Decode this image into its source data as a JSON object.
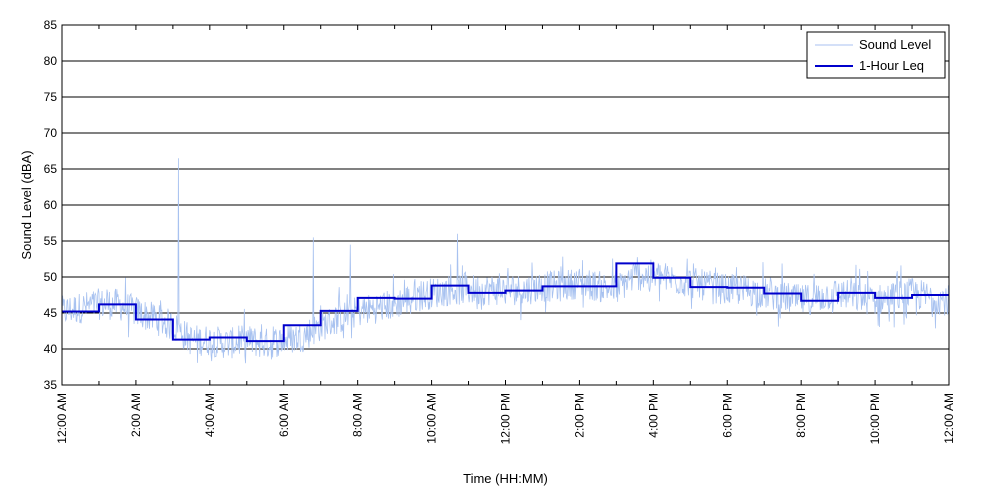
{
  "chart_data": {
    "type": "line",
    "title": "",
    "xlabel": "Time (HH:MM)",
    "ylabel": "Sound Level (dBA)",
    "ylim": [
      35,
      85
    ],
    "y_ticks": [
      "35",
      "40",
      "45",
      "50",
      "55",
      "60",
      "65",
      "70",
      "75",
      "80",
      "85"
    ],
    "xlim_hours": [
      0,
      24
    ],
    "x_tick_hours": [
      0,
      2,
      4,
      6,
      8,
      10,
      12,
      14,
      16,
      18,
      20,
      22,
      24
    ],
    "x_tick_labels": [
      "12:00 AM",
      "2:00 AM",
      "4:00 AM",
      "6:00 AM",
      "8:00 AM",
      "10:00 AM",
      "12:00 PM",
      "2:00 PM",
      "4:00 PM",
      "6:00 PM",
      "8:00 PM",
      "10:00 PM",
      "12:00 AM"
    ],
    "grid": "horizontal",
    "legend_position": "top-right",
    "colors": {
      "sound_level": "#a8c2f0",
      "leq": "#0000cc"
    },
    "series": [
      {
        "name": "Sound Level",
        "style": "thin-noisy-line",
        "hours": [
          0,
          0.5,
          1,
          1.5,
          2,
          2.5,
          3,
          3.5,
          4,
          4.5,
          5,
          5.5,
          6,
          6.5,
          7,
          7.5,
          8,
          8.5,
          9,
          9.5,
          10,
          10.5,
          11,
          11.5,
          12,
          12.5,
          13,
          13.5,
          14,
          14.5,
          15,
          15.5,
          16,
          16.5,
          17,
          17.5,
          18,
          18.5,
          19,
          19.5,
          20,
          20.5,
          21,
          21.5,
          22,
          22.5,
          23,
          23.5,
          24
        ],
        "values": [
          45,
          45.5,
          46,
          46,
          45,
          44,
          43,
          41,
          41,
          40.5,
          41,
          40.5,
          41,
          41.5,
          43,
          44,
          45,
          45.5,
          46,
          47,
          47.5,
          48,
          48,
          48,
          48,
          48,
          48.5,
          48.5,
          49,
          48.5,
          48,
          50,
          50,
          49.5,
          49,
          48.5,
          48,
          48,
          47.5,
          47,
          46.5,
          47,
          47.5,
          47,
          46.5,
          47,
          47.5,
          47,
          46.5
        ],
        "spikes": [
          [
            3.15,
            66.5
          ],
          [
            6.8,
            55.5
          ],
          [
            10.7,
            56
          ],
          [
            7.8,
            54.5
          ]
        ]
      },
      {
        "name": "1-Hour Leq",
        "style": "step",
        "hour_starts": [
          0,
          1,
          2,
          3,
          4,
          5,
          6,
          7,
          8,
          9,
          10,
          11,
          12,
          13,
          14,
          15,
          16,
          17,
          18,
          19,
          20,
          21,
          22,
          23
        ],
        "values": [
          45.2,
          46.2,
          44.1,
          41.3,
          41.6,
          41.1,
          43.3,
          45.3,
          47.1,
          47.0,
          48.8,
          47.8,
          48.1,
          48.7,
          48.7,
          51.9,
          49.9,
          48.6,
          48.5,
          47.7,
          46.7,
          47.8,
          47.1,
          47.5
        ]
      }
    ]
  }
}
